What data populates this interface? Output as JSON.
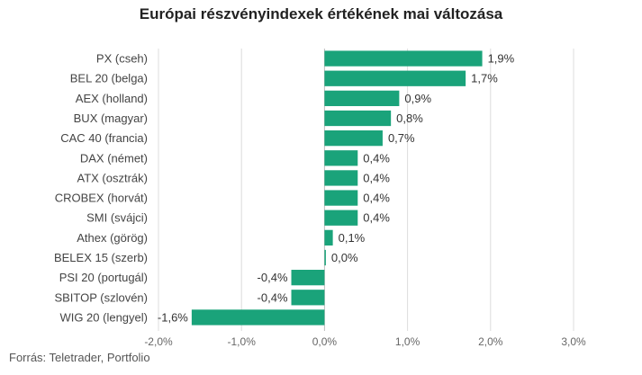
{
  "chart_data": {
    "type": "bar",
    "orientation": "horizontal",
    "title": "Európai részvényindexek értékének mai változása",
    "categories": [
      "PX (cseh)",
      "BEL 20 (belga)",
      "AEX (holland)",
      "BUX (magyar)",
      "CAC 40 (francia)",
      "DAX (német)",
      "ATX (osztrák)",
      "CROBEX (horvát)",
      "SMI (svájci)",
      "Athex (görög)",
      "BELEX 15 (szerb)",
      "PSI 20 (portugál)",
      "SBITOP (szlovén)",
      "WIG 20 (lengyel)"
    ],
    "values": [
      1.9,
      1.7,
      0.9,
      0.8,
      0.7,
      0.4,
      0.4,
      0.4,
      0.4,
      0.1,
      0.0,
      -0.4,
      -0.4,
      -1.6
    ],
    "value_labels": [
      "1,9%",
      "1,7%",
      "0,9%",
      "0,8%",
      "0,7%",
      "0,4%",
      "0,4%",
      "0,4%",
      "0,4%",
      "0,1%",
      "0,0%",
      "-0,4%",
      "-0,4%",
      "-1,6%"
    ],
    "xlim": [
      -2.0,
      3.0
    ],
    "ticks": [
      -2.0,
      -1.0,
      0.0,
      1.0,
      2.0,
      3.0
    ],
    "tick_labels": [
      "-2,0%",
      "-1,0%",
      "0,0%",
      "1,0%",
      "2,0%",
      "3,0%"
    ],
    "grid": true,
    "bar_color": "#1aa37a",
    "source": "Forrás: Teletrader, Portfolio"
  }
}
